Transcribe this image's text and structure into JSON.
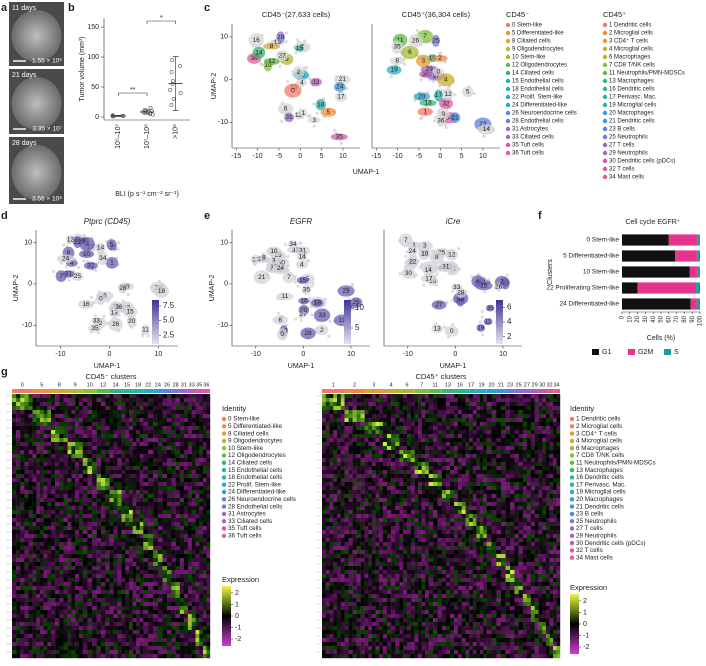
{
  "panel_letters": [
    "a",
    "b",
    "c",
    "d",
    "e",
    "f",
    "g"
  ],
  "panel_a": {
    "images": [
      {
        "caption": "11 days",
        "value": "1.55 × 10⁶"
      },
      {
        "caption": "21 days",
        "value": "3.35 × 10⁷"
      },
      {
        "caption": "28 days",
        "value": "3.56 × 10⁸"
      }
    ]
  },
  "chart_data": [
    {
      "type": "dot",
      "y_label": "Tumor volume (mm³)",
      "x_label": "BLI (p s⁻¹ cm⁻² sr⁻¹)",
      "categories": [
        "10⁵–10⁷",
        "10⁷–10⁸",
        ">10⁸"
      ],
      "values": [
        [
          1,
          2,
          1.5,
          3,
          2,
          1
        ],
        [
          5,
          8,
          10,
          6,
          12,
          9,
          7,
          15,
          4
        ],
        [
          20,
          30,
          45,
          60,
          75,
          85,
          95,
          40,
          55
        ]
      ],
      "means": [
        1.8,
        8.4,
        56
      ],
      "errors": [
        0.8,
        3.5,
        45
      ],
      "annotations": [
        "**",
        "*"
      ],
      "color": "#555555",
      "ylim": [
        -5,
        165
      ],
      "yticks": [
        0,
        50,
        100,
        150
      ]
    },
    {
      "type": "bar",
      "orientation": "horizontal",
      "stacked": true,
      "title": "Cell cycle EGFR⁺",
      "categories": [
        "0 Stem-like",
        "5 Differentiated-like",
        "10 Stem-like",
        "22 Proliferating Stem-like",
        "24 Differentiated-like"
      ],
      "series": [
        {
          "name": "G1",
          "color": "#111111",
          "values": [
            60,
            68,
            87,
            20,
            88
          ]
        },
        {
          "name": "G2M",
          "color": "#e5338e",
          "values": [
            37,
            28,
            10,
            75,
            8
          ]
        },
        {
          "name": "S",
          "color": "#1a9e9a",
          "values": [
            3,
            4,
            3,
            5,
            4
          ]
        }
      ],
      "x_label": "Cells (%)",
      "y_label": "Clusters",
      "xlim": [
        0,
        100
      ],
      "xticks": [
        0,
        10,
        20,
        30,
        40,
        50,
        60,
        70,
        80,
        90,
        100
      ]
    }
  ],
  "panel_c": {
    "x_label": "UMAP-1",
    "y_label": "UMAP-2",
    "umaps": [
      {
        "title": "CD45⁻(27,633 cells)",
        "xlim": [
          -16,
          14
        ],
        "xticks": [
          -15,
          -10,
          -5,
          0,
          5,
          10
        ],
        "ylim": [
          -16,
          13
        ],
        "yticks": [
          -10,
          0,
          10
        ],
        "labels": [
          "25",
          "11",
          "13",
          "17",
          "22",
          "21",
          "2",
          "4",
          "9",
          "23",
          "7",
          "3",
          "27",
          "1",
          "10",
          "6",
          "36",
          "31",
          "15",
          "18",
          "16",
          "33",
          "14",
          "0",
          "28",
          "5",
          "8",
          "24",
          "12",
          "35"
        ]
      },
      {
        "title": "CD45⁺(36,304 cells)",
        "xlim": [
          -16,
          14
        ],
        "xticks": [
          -15,
          -10,
          -5,
          0,
          5,
          10
        ],
        "ylim": [
          -16,
          13
        ],
        "yticks": [
          -10,
          0,
          10
        ],
        "labels": [
          "30",
          "20",
          "29",
          "32",
          "16",
          "23",
          "25",
          "34",
          "11",
          "21",
          "27",
          "17",
          "7",
          "13",
          "3",
          "9",
          "6",
          "4",
          "2",
          "1",
          "19",
          "36",
          "0",
          "5",
          "8",
          "12",
          "35",
          "14",
          "26"
        ]
      }
    ],
    "legends": [
      {
        "title": "CD45⁻",
        "entries": [
          "0 Stem-like",
          "5 Differentiated-like",
          "8 Ciliated cells",
          "9 Oligodendrocytes",
          "10 Stem-like",
          "12 Oligodendrocytes",
          "14 Ciliated cells",
          "15 Endothelial cells",
          "18 Endothelial cells",
          "22 Prolif. Stem-like",
          "24 Differentiated-like",
          "26 Neuroendocrine cells",
          "28 Endothelial cells",
          "31 Astrocytes",
          "33 Ciliated cells",
          "35 Tuft cells",
          "36 Tuft cells"
        ],
        "colors": [
          "#f07c6c",
          "#f28f3b",
          "#d4a537",
          "#b5b833",
          "#8fc13e",
          "#5dbb46",
          "#3bb273",
          "#2fb59a",
          "#27b3b3",
          "#29a9cc",
          "#3b9ad8",
          "#5a87dc",
          "#7c77d8",
          "#9b69cf",
          "#b861c2",
          "#d05cb0",
          "#e45c9c"
        ]
      },
      {
        "title": "CD45⁺",
        "entries": [
          "1 Dendritic cells",
          "2 Microglial cells",
          "3 CD4⁺ T cells",
          "4 Microglial cells",
          "6 Macrophages",
          "7 CD8 T/NK cells",
          "11 Neutrophils/PMN-MDSCs",
          "13 Macrophages",
          "16 Dendritic cells",
          "17 Perivasc. Mac.",
          "19 Microglial cells",
          "20 Macrophages",
          "21 Dendritic cells",
          "23 B cells",
          "25 Neutrophils",
          "27 T cells",
          "29 Neutrophils",
          "30 Dendritic cells (pDCs)",
          "32 T cells",
          "34 Mast cells"
        ],
        "colors": [
          "#f27a6a",
          "#f08a40",
          "#e29c30",
          "#c9ad2e",
          "#a8b934",
          "#84c03f",
          "#5cbc4e",
          "#3cb66c",
          "#2fb58b",
          "#28b3a8",
          "#27adc2",
          "#2fa1d4",
          "#4393db",
          "#5d83dc",
          "#7876d7",
          "#9369cd",
          "#ad61c1",
          "#c45bb2",
          "#d95aa2",
          "#e75c90"
        ]
      }
    ]
  },
  "panel_de": {
    "x_label": "UMAP-1",
    "y_label": "UMAP-2",
    "xlim": [
      -15,
      14
    ],
    "xticks": [
      -10,
      0,
      10
    ],
    "ylim": [
      -15,
      13
    ],
    "yticks": [
      -10,
      0,
      10
    ],
    "labels": [
      "30",
      "20",
      "1",
      "29",
      "32",
      "16",
      "21",
      "23",
      "34",
      "11",
      "25",
      "27",
      "17",
      "6",
      "3",
      "13",
      "7",
      "2",
      "4",
      "19",
      "12",
      "36",
      "9",
      "26",
      "22",
      "0",
      "10",
      "28",
      "5",
      "15",
      "8",
      "35",
      "31",
      "18",
      "14",
      "33",
      "24"
    ],
    "plots": [
      {
        "title": "Ptprc (CD45)",
        "colorbar": {
          "lim": [
            1,
            8.5
          ],
          "ticks": [
            {
              "value": 7.5,
              "label": "7.5"
            },
            {
              "value": 5,
              "label": "5.0"
            },
            {
              "value": 2.5,
              "label": "2.5"
            }
          ]
        }
      },
      {
        "title": "EGFR",
        "colorbar": {
          "lim": [
            1,
            12
          ],
          "ticks": [
            10,
            5
          ]
        }
      },
      {
        "title": "iCre",
        "colorbar": {
          "lim": [
            1,
            7
          ],
          "ticks": [
            6,
            4,
            2
          ]
        }
      }
    ]
  },
  "panel_g": {
    "legend_title": "Identity",
    "colorbar_title": "Expression",
    "colorbar_ticks": [
      2,
      1,
      0,
      -1,
      -2
    ],
    "colorbar_lim": [
      -2.6,
      2.6
    ],
    "heatmaps": [
      {
        "title": "CD45⁻ clusters",
        "columns": [
          "0",
          "5",
          "8",
          "9",
          "10",
          "12",
          "14",
          "15",
          "18",
          "22",
          "24",
          "26",
          "28",
          "31",
          "33",
          "35",
          "36"
        ]
      },
      {
        "title": "CD45⁺ clusters",
        "columns": [
          "1",
          "2",
          "3",
          "4",
          "6",
          "7",
          "11",
          "13",
          "16",
          "17",
          "19",
          "20",
          "21",
          "23",
          "25",
          "27",
          "29",
          "30",
          "32",
          "34"
        ]
      }
    ]
  }
}
